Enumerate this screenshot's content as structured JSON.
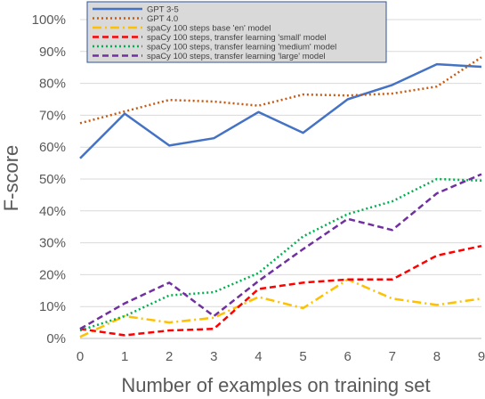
{
  "chart_data": {
    "type": "line",
    "xlabel": "Number of examples on training set",
    "ylabel": "F-score",
    "x": [
      0,
      1,
      2,
      3,
      4,
      5,
      6,
      7,
      8,
      9
    ],
    "xlim": [
      0,
      9
    ],
    "ylim": [
      0,
      100
    ],
    "y_ticks": [
      "0%",
      "10%",
      "20%",
      "30%",
      "40%",
      "50%",
      "60%",
      "70%",
      "80%",
      "90%",
      "100%"
    ],
    "x_ticks": [
      "0",
      "1",
      "2",
      "3",
      "4",
      "5",
      "6",
      "7",
      "8",
      "9"
    ],
    "grid": "horizontal",
    "legend_position": "top-left",
    "series": [
      {
        "name": "GPT 3-5",
        "color": "#4472C4",
        "style": "solid",
        "values": [
          56.5,
          70.5,
          60.5,
          62.8,
          71,
          64.5,
          75,
          79.5,
          86,
          85.2
        ]
      },
      {
        "name": "GPT 4.0",
        "color": "#C55A11",
        "style": "dotted",
        "values": [
          67.5,
          71.2,
          74.8,
          74.3,
          73,
          76.5,
          76.2,
          76.8,
          79,
          88.2
        ]
      },
      {
        "name": "spaCy 100 steps base 'en' model",
        "color": "#FFC000",
        "style": "dashdot",
        "values": [
          0.5,
          7,
          5,
          6.5,
          13,
          9.5,
          18.5,
          12.5,
          10.5,
          12.5
        ]
      },
      {
        "name": "spaCy 100 steps, transfer learning 'small' model",
        "color": "#FF0000",
        "style": "dashed",
        "values": [
          3,
          1,
          2.5,
          3,
          15.5,
          17.5,
          18.5,
          18.5,
          26,
          29
        ]
      },
      {
        "name": "spaCy 100 steps, transfer learning 'medium' model",
        "color": "#00B050",
        "style": "dotted",
        "values": [
          2.5,
          7,
          13.5,
          14.5,
          20.5,
          32,
          39,
          43,
          50,
          49.5
        ]
      },
      {
        "name": "spaCy 100 steps, transfer learning 'large' model",
        "color": "#7030A0",
        "style": "dashed",
        "values": [
          3,
          11,
          17.5,
          7,
          18,
          28,
          37.5,
          34,
          45.5,
          51.5
        ]
      }
    ]
  }
}
